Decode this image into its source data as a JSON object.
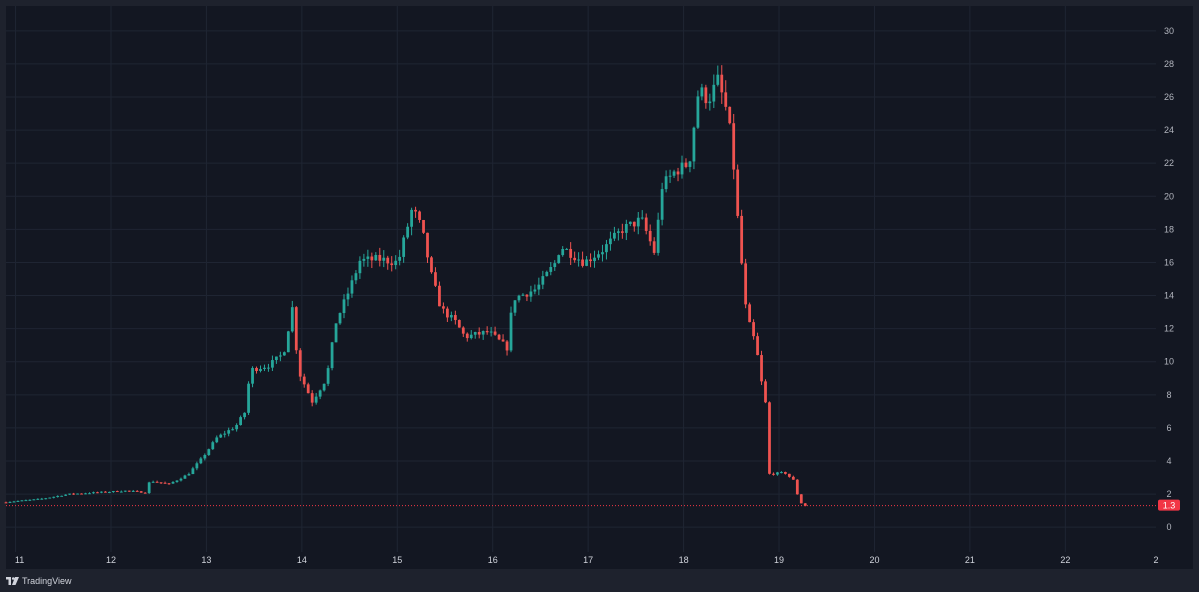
{
  "brand": {
    "name": "TradingView",
    "logo_icon": "tradingview-logo-icon"
  },
  "colors": {
    "background": "#131722",
    "frame": "#1e222d",
    "grid": "#1f2533",
    "up": "#26a69a",
    "down": "#ef5350",
    "last_price_badge": "#f23645",
    "axis_text": "#b2b5be"
  },
  "chart_data": {
    "type": "candlestick",
    "title": "",
    "xlabel": "",
    "ylabel": "",
    "ylim": [
      -1.5,
      31.5
    ],
    "xlim": [
      10.9,
      22.95
    ],
    "y_ticks": [
      "0",
      "2",
      "4",
      "6",
      "8",
      "10",
      "12",
      "14",
      "16",
      "18",
      "20",
      "22",
      "24",
      "26",
      "28",
      "30"
    ],
    "x_ticks": [
      "11",
      "12",
      "13",
      "14",
      "15",
      "16",
      "17",
      "18",
      "19",
      "20",
      "21",
      "22",
      "2"
    ],
    "grid": true,
    "last_price": 1.3,
    "last_price_label": "1.3",
    "price_path": [
      [
        10.9,
        1.5
      ],
      [
        11.3,
        1.7
      ],
      [
        11.6,
        2.0
      ],
      [
        11.9,
        2.1
      ],
      [
        12.2,
        2.2
      ],
      [
        12.4,
        2.1
      ],
      [
        12.45,
        2.8
      ],
      [
        12.65,
        2.6
      ],
      [
        12.85,
        3.2
      ],
      [
        13.0,
        4.2
      ],
      [
        13.15,
        5.4
      ],
      [
        13.35,
        6.1
      ],
      [
        13.45,
        7.0
      ],
      [
        13.5,
        9.5
      ],
      [
        13.7,
        9.8
      ],
      [
        13.85,
        10.5
      ],
      [
        13.95,
        13.5
      ],
      [
        14.0,
        9.5
      ],
      [
        14.15,
        7.6
      ],
      [
        14.3,
        9.0
      ],
      [
        14.4,
        12.4
      ],
      [
        14.55,
        14.5
      ],
      [
        14.65,
        16.1
      ],
      [
        14.85,
        16.2
      ],
      [
        15.05,
        16.0
      ],
      [
        15.2,
        19.3
      ],
      [
        15.3,
        18.0
      ],
      [
        15.4,
        15.2
      ],
      [
        15.5,
        13.2
      ],
      [
        15.65,
        12.4
      ],
      [
        15.75,
        11.5
      ],
      [
        16.0,
        11.8
      ],
      [
        16.2,
        10.8
      ],
      [
        16.25,
        13.8
      ],
      [
        16.5,
        14.4
      ],
      [
        16.7,
        16.0
      ],
      [
        16.75,
        17.0
      ],
      [
        17.0,
        16.0
      ],
      [
        17.2,
        16.8
      ],
      [
        17.4,
        18.0
      ],
      [
        17.6,
        18.6
      ],
      [
        17.75,
        16.4
      ],
      [
        17.8,
        20.5
      ],
      [
        17.95,
        21.5
      ],
      [
        18.1,
        22.0
      ],
      [
        18.2,
        26.5
      ],
      [
        18.3,
        25.8
      ],
      [
        18.4,
        27.0
      ],
      [
        18.5,
        25.0
      ],
      [
        18.55,
        23.0
      ],
      [
        18.62,
        17.8
      ],
      [
        18.7,
        12.8
      ],
      [
        18.8,
        11.0
      ],
      [
        18.85,
        9.0
      ],
      [
        18.9,
        7.5
      ],
      [
        18.92,
        3.2
      ],
      [
        19.1,
        3.3
      ],
      [
        19.2,
        2.8
      ],
      [
        19.25,
        1.6
      ],
      [
        19.3,
        1.3
      ]
    ]
  }
}
